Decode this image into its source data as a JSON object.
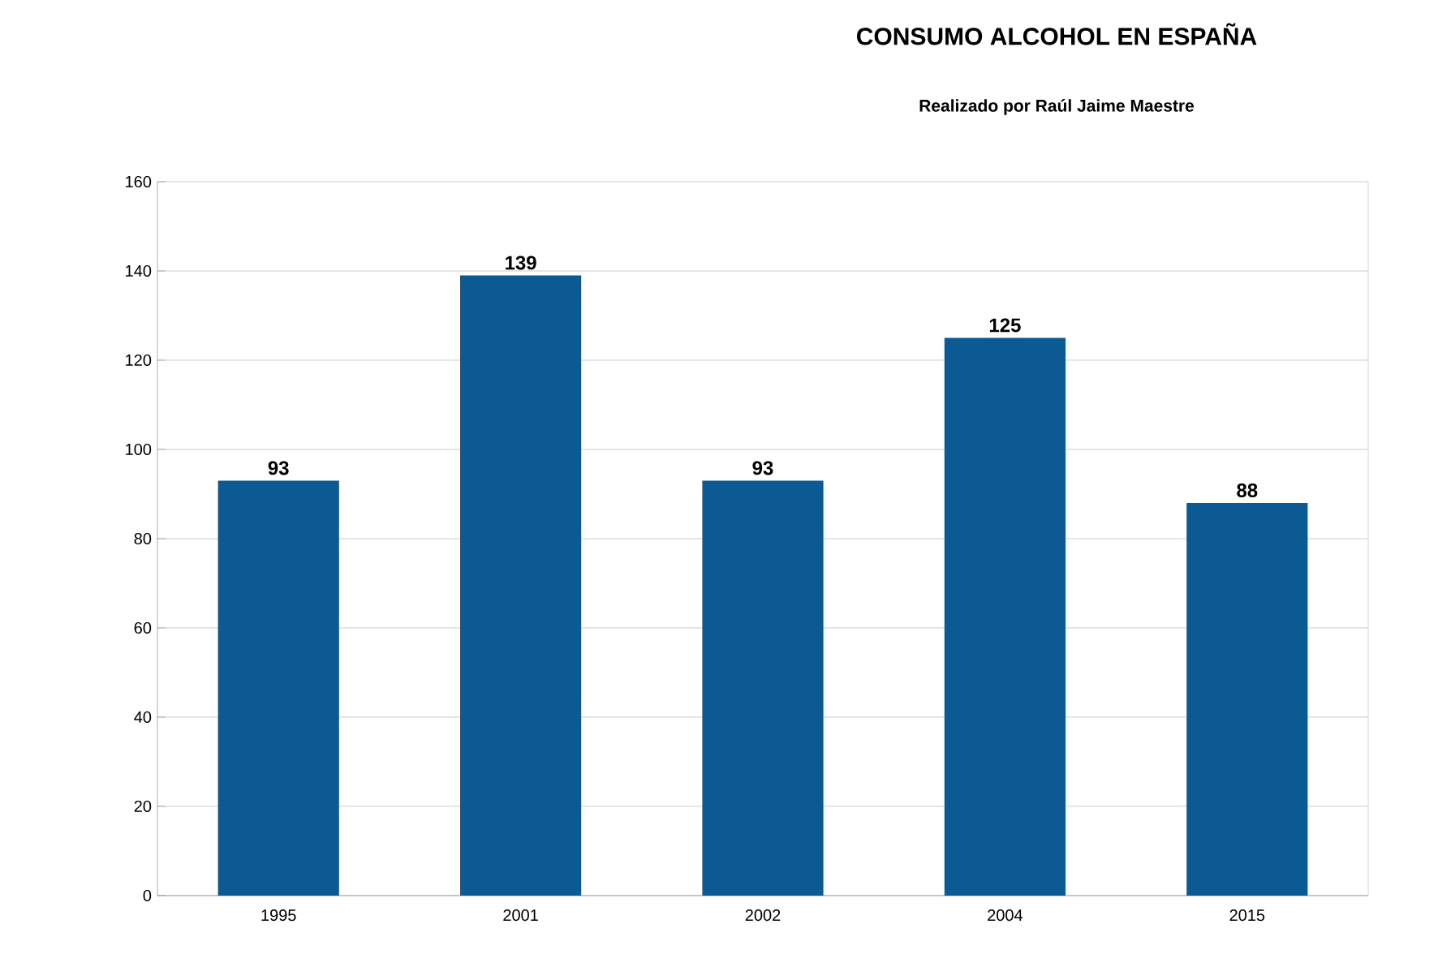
{
  "chart_data": {
    "type": "bar",
    "title": "CONSUMO ALCOHOL EN ESPAÑA",
    "subtitle": "Realizado por Raúl Jaime Maestre",
    "categories": [
      "1995",
      "2001",
      "2002",
      "2004",
      "2015"
    ],
    "values": [
      93,
      139,
      93,
      125,
      88
    ],
    "color": "#0b5a93",
    "ylim": [
      0,
      160
    ],
    "yticks": [
      0,
      20,
      40,
      60,
      80,
      100,
      120,
      140,
      160
    ],
    "grid": "y",
    "data_labels": true
  }
}
